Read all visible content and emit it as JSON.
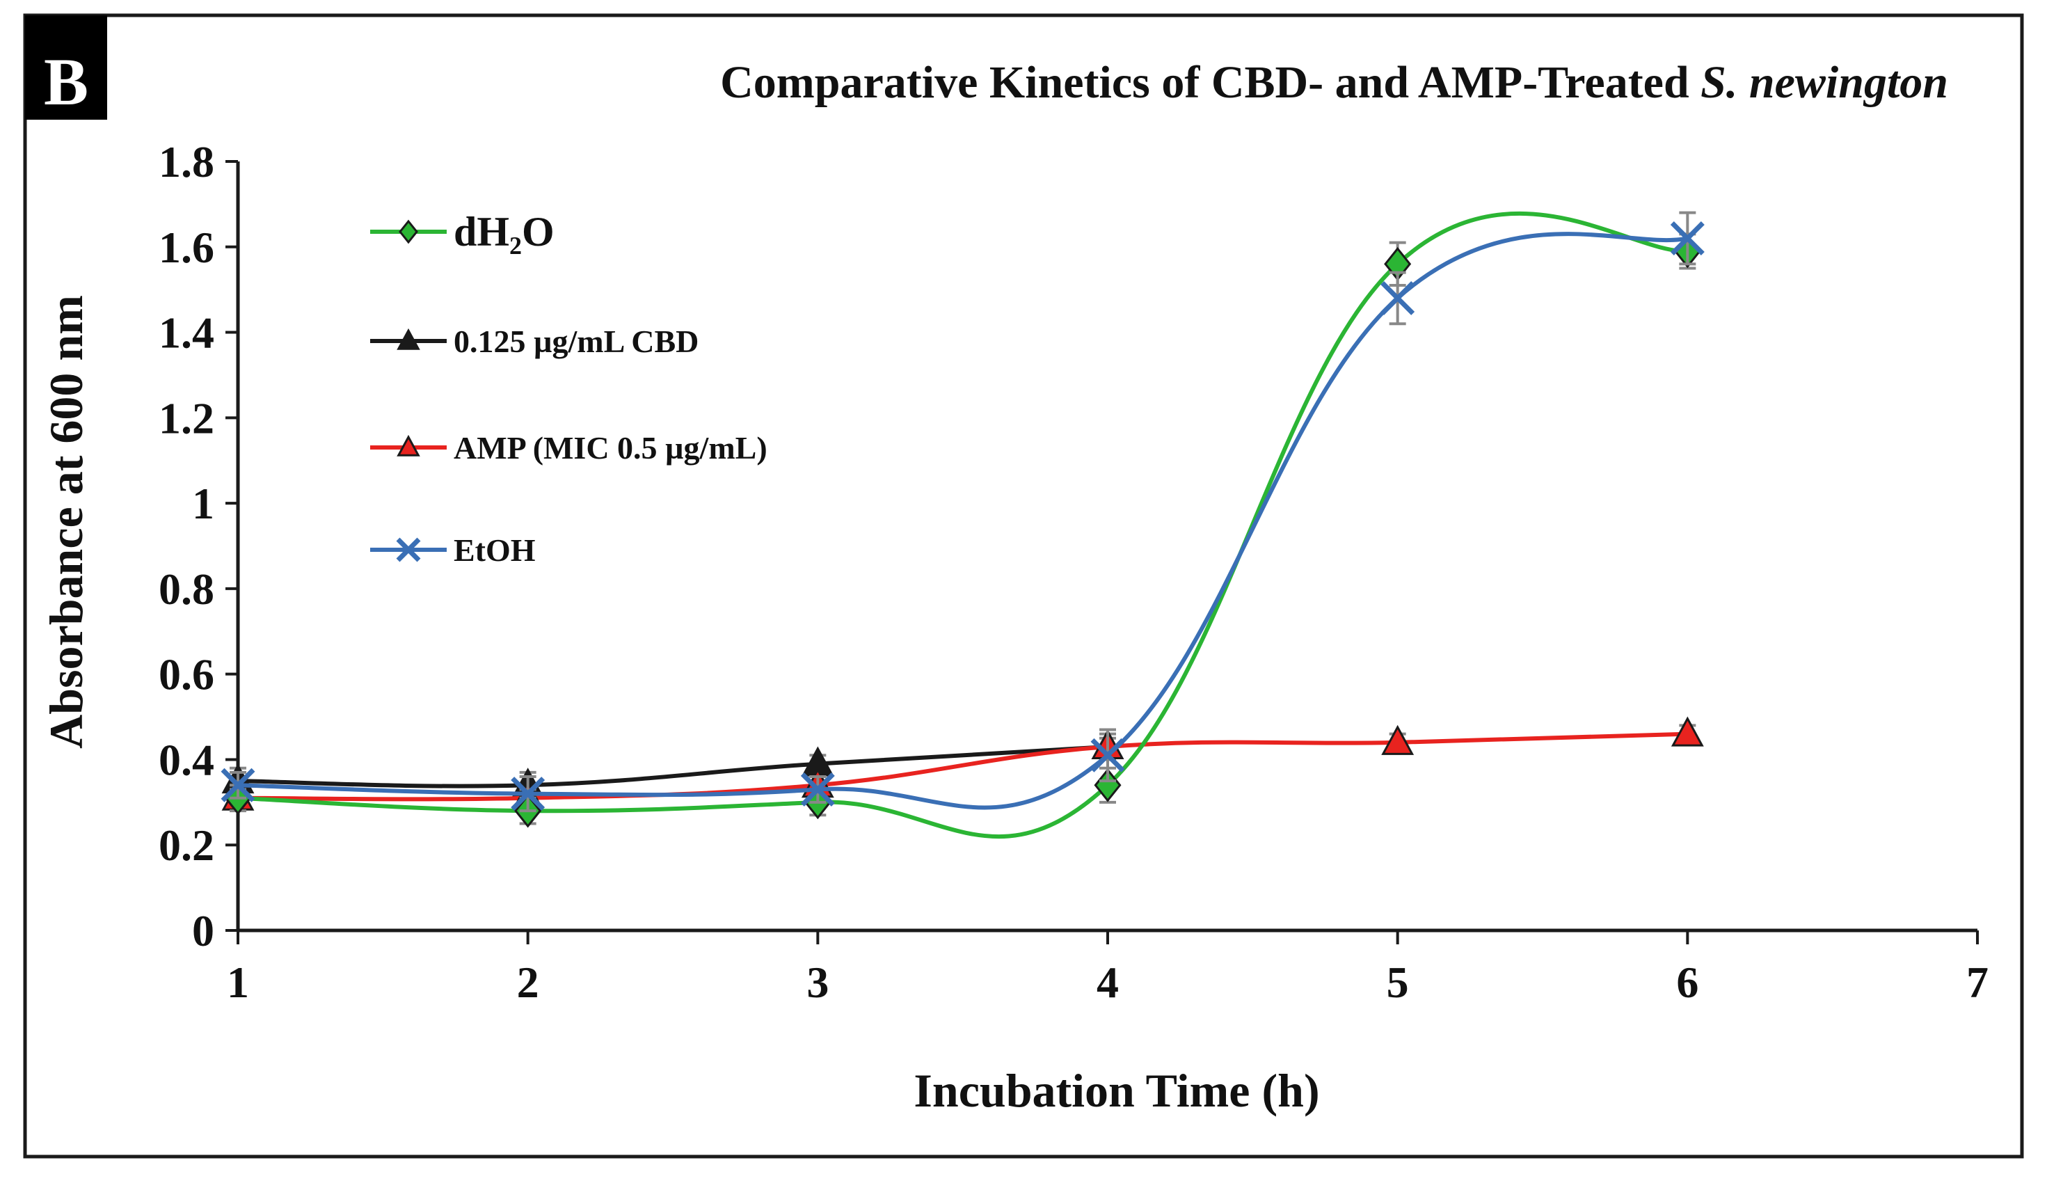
{
  "panel_label": "B",
  "chart_data": {
    "type": "line",
    "title": "Comparative Kinetics of CBD- and AMP-Treated",
    "title_italic": "S. newington",
    "xlabel": "Incubation Time (h)",
    "ylabel": "Absorbance at 600 nm",
    "xlim": [
      1,
      7
    ],
    "ylim": [
      0,
      1.8
    ],
    "x_ticks": [
      "1",
      "2",
      "3",
      "4",
      "5",
      "6",
      "7"
    ],
    "y_ticks": [
      "0",
      "0.2",
      "0.4",
      "0.6",
      "0.8",
      "1",
      "1.2",
      "1.4",
      "1.6",
      "1.8"
    ],
    "legend_position": "top-left",
    "series": [
      {
        "name": "dH2O",
        "legend_label": "dH₂O",
        "color": "#2bb534",
        "marker": "diamond",
        "x": [
          1,
          2,
          3,
          4,
          5,
          6
        ],
        "values": [
          0.31,
          0.28,
          0.3,
          0.34,
          1.56,
          1.59
        ],
        "errors": [
          0.03,
          0.03,
          0.03,
          0.04,
          0.05,
          0.04
        ]
      },
      {
        "name": "0.125 µg/mL CBD",
        "legend_label": "0.125 µg/mL CBD",
        "color": "#1a1a1a",
        "marker": "triangle",
        "x": [
          1,
          2,
          3,
          4
        ],
        "values": [
          0.35,
          0.34,
          0.39,
          0.43
        ],
        "errors": [
          0.03,
          0.03,
          0.02,
          0.03
        ]
      },
      {
        "name": "AMP (MIC 0.5 µg/mL)",
        "legend_label": "AMP (MIC 0.5 µg/mL)",
        "color": "#e8231f",
        "marker": "triangle",
        "x": [
          1,
          2,
          3,
          4,
          5,
          6
        ],
        "values": [
          0.31,
          0.31,
          0.34,
          0.43,
          0.44,
          0.46
        ],
        "errors": [
          0.02,
          0.02,
          0.02,
          0.02,
          0.02,
          0.02
        ]
      },
      {
        "name": "EtOH",
        "legend_label": "EtOH",
        "color": "#3a6fb5",
        "marker": "x",
        "x": [
          1,
          2,
          3,
          4,
          5,
          6
        ],
        "values": [
          0.34,
          0.32,
          0.33,
          0.41,
          1.48,
          1.62
        ],
        "errors": [
          0.03,
          0.04,
          0.03,
          0.06,
          0.06,
          0.06
        ]
      }
    ]
  }
}
